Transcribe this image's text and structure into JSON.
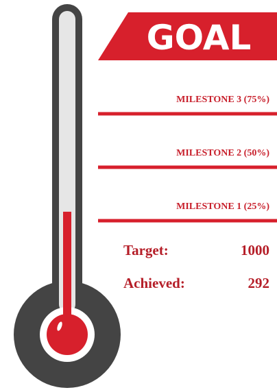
{
  "chart_data": {
    "type": "thermometer",
    "title": "GOAL",
    "color": "#d7202c",
    "milestones": [
      {
        "label": "MILESTONE 3 (75%)",
        "value": 75
      },
      {
        "label": "MILESTONE 2 (50%)",
        "value": 50
      },
      {
        "label": "MILESTONE 1 (25%)",
        "value": 25
      }
    ],
    "target_label": "Target:",
    "target": 1000,
    "achieved_label": "Achieved:",
    "achieved": 292
  }
}
